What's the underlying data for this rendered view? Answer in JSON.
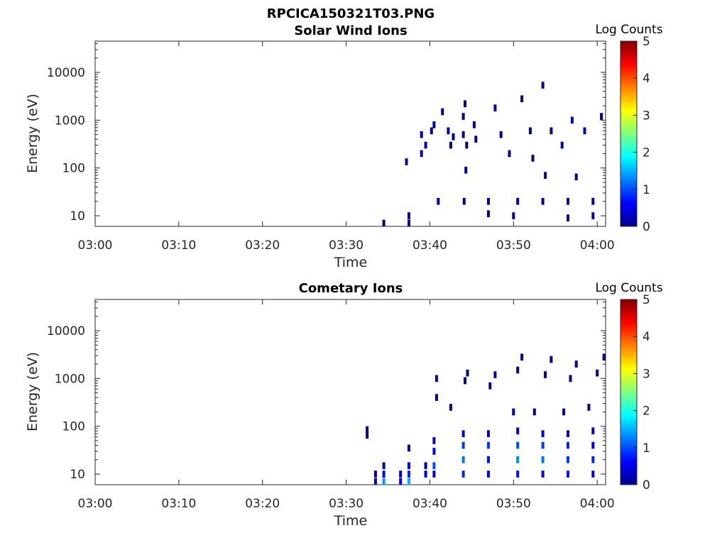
{
  "figure_title": "RPCICA150321T03.PNG",
  "chart_data": [
    {
      "type": "heatmap",
      "title": "Solar Wind Ions",
      "xlabel": "Time",
      "ylabel": "Energy (eV)",
      "x_ticks": [
        "03:00",
        "03:10",
        "03:20",
        "03:30",
        "03:40",
        "03:50",
        "04:00"
      ],
      "y_ticks": [
        "10",
        "100",
        "1000",
        "10000"
      ],
      "y_scale": "log",
      "xlim_minutes": [
        0,
        61
      ],
      "ylim_eV": [
        6,
        45000
      ],
      "colorbar": {
        "label": "Log Counts",
        "ticks": [
          "0",
          "1",
          "2",
          "3",
          "4",
          "5"
        ],
        "range": [
          0,
          5
        ],
        "colormap": "jet"
      },
      "cells": [
        {
          "t": 34.5,
          "e": 7,
          "v": 0.1
        },
        {
          "t": 37.5,
          "e": 7,
          "v": 0.1
        },
        {
          "t": 37.5,
          "e": 10,
          "v": 0.1
        },
        {
          "t": 37.2,
          "e": 135,
          "v": 0.1
        },
        {
          "t": 39.0,
          "e": 500,
          "v": 0.1
        },
        {
          "t": 39.0,
          "e": 200,
          "v": 0.1
        },
        {
          "t": 39.5,
          "e": 300,
          "v": 0.1
        },
        {
          "t": 40.5,
          "e": 800,
          "v": 0.1
        },
        {
          "t": 40.2,
          "e": 600,
          "v": 0.1
        },
        {
          "t": 41.0,
          "e": 20,
          "v": 0.1
        },
        {
          "t": 41.5,
          "e": 1500,
          "v": 0.1
        },
        {
          "t": 42.2,
          "e": 600,
          "v": 0.1
        },
        {
          "t": 42.5,
          "e": 300,
          "v": 0.1
        },
        {
          "t": 42.8,
          "e": 450,
          "v": 0.1
        },
        {
          "t": 44.0,
          "e": 1200,
          "v": 0.1
        },
        {
          "t": 44.0,
          "e": 500,
          "v": 0.1
        },
        {
          "t": 44.1,
          "e": 20,
          "v": 0.1
        },
        {
          "t": 44.2,
          "e": 2200,
          "v": 0.1
        },
        {
          "t": 44.3,
          "e": 90,
          "v": 0.1
        },
        {
          "t": 44.4,
          "e": 300,
          "v": 0.1
        },
        {
          "t": 45.3,
          "e": 800,
          "v": 0.1
        },
        {
          "t": 45.5,
          "e": 400,
          "v": 0.1
        },
        {
          "t": 47.0,
          "e": 20,
          "v": 0.1
        },
        {
          "t": 47.0,
          "e": 11,
          "v": 0.1
        },
        {
          "t": 47.8,
          "e": 1800,
          "v": 0.1
        },
        {
          "t": 48.5,
          "e": 500,
          "v": 0.1
        },
        {
          "t": 49.5,
          "e": 200,
          "v": 0.1
        },
        {
          "t": 50.5,
          "e": 20,
          "v": 0.1
        },
        {
          "t": 50.0,
          "e": 10,
          "v": 0.1
        },
        {
          "t": 51.0,
          "e": 2800,
          "v": 0.1
        },
        {
          "t": 52.0,
          "e": 600,
          "v": 0.1
        },
        {
          "t": 52.3,
          "e": 160,
          "v": 0.1
        },
        {
          "t": 53.5,
          "e": 20,
          "v": 0.1
        },
        {
          "t": 53.5,
          "e": 5400,
          "v": 0.1
        },
        {
          "t": 53.8,
          "e": 70,
          "v": 0.1
        },
        {
          "t": 54.5,
          "e": 600,
          "v": 0.1
        },
        {
          "t": 55.8,
          "e": 300,
          "v": 0.1
        },
        {
          "t": 56.5,
          "e": 20,
          "v": 0.1
        },
        {
          "t": 56.5,
          "e": 9,
          "v": 0.1
        },
        {
          "t": 57.0,
          "e": 1000,
          "v": 0.1
        },
        {
          "t": 57.5,
          "e": 65,
          "v": 0.1
        },
        {
          "t": 58.5,
          "e": 600,
          "v": 0.1
        },
        {
          "t": 59.5,
          "e": 20,
          "v": 0.1
        },
        {
          "t": 59.5,
          "e": 10,
          "v": 0.1
        },
        {
          "t": 60.5,
          "e": 1200,
          "v": 0.1
        }
      ]
    },
    {
      "type": "heatmap",
      "title": "Cometary Ions",
      "xlabel": "Time",
      "ylabel": "Energy (eV)",
      "x_ticks": [
        "03:00",
        "03:10",
        "03:20",
        "03:30",
        "03:40",
        "03:50",
        "04:00"
      ],
      "y_ticks": [
        "10",
        "100",
        "1000",
        "10000"
      ],
      "y_scale": "log",
      "xlim_minutes": [
        0,
        61
      ],
      "ylim_eV": [
        6,
        45000
      ],
      "colorbar": {
        "label": "Log Counts",
        "ticks": [
          "0",
          "1",
          "2",
          "3",
          "4",
          "5"
        ],
        "range": [
          0,
          5
        ],
        "colormap": "jet"
      },
      "cells": [
        {
          "t": 32.5,
          "e": 85,
          "v": 0.1
        },
        {
          "t": 32.5,
          "e": 65,
          "v": 0.1
        },
        {
          "t": 33.5,
          "e": 10,
          "v": 0.2
        },
        {
          "t": 33.5,
          "e": 7,
          "v": 0.3
        },
        {
          "t": 34.5,
          "e": 15,
          "v": 0.2
        },
        {
          "t": 34.5,
          "e": 10,
          "v": 0.6
        },
        {
          "t": 34.5,
          "e": 7,
          "v": 1.4
        },
        {
          "t": 36.5,
          "e": 10,
          "v": 0.3
        },
        {
          "t": 36.5,
          "e": 7,
          "v": 0.5
        },
        {
          "t": 37.5,
          "e": 35,
          "v": 0.1
        },
        {
          "t": 37.5,
          "e": 15,
          "v": 0.4
        },
        {
          "t": 37.5,
          "e": 10,
          "v": 0.8
        },
        {
          "t": 37.5,
          "e": 7,
          "v": 1.5
        },
        {
          "t": 39.5,
          "e": 15,
          "v": 0.2
        },
        {
          "t": 39.5,
          "e": 10,
          "v": 0.3
        },
        {
          "t": 40.5,
          "e": 50,
          "v": 0.3
        },
        {
          "t": 40.5,
          "e": 30,
          "v": 0.6
        },
        {
          "t": 40.5,
          "e": 15,
          "v": 1.0
        },
        {
          "t": 40.5,
          "e": 10,
          "v": 0.5
        },
        {
          "t": 40.8,
          "e": 1000,
          "v": 0.1
        },
        {
          "t": 40.8,
          "e": 400,
          "v": 0.1
        },
        {
          "t": 42.5,
          "e": 250,
          "v": 0.1
        },
        {
          "t": 44.0,
          "e": 70,
          "v": 0.5
        },
        {
          "t": 44.0,
          "e": 40,
          "v": 0.9
        },
        {
          "t": 44.0,
          "e": 20,
          "v": 1.2
        },
        {
          "t": 44.0,
          "e": 10,
          "v": 0.8
        },
        {
          "t": 44.2,
          "e": 900,
          "v": 0.1
        },
        {
          "t": 44.5,
          "e": 1300,
          "v": 0.1
        },
        {
          "t": 47.0,
          "e": 70,
          "v": 0.4
        },
        {
          "t": 47.0,
          "e": 40,
          "v": 0.9
        },
        {
          "t": 47.0,
          "e": 20,
          "v": 0.7
        },
        {
          "t": 47.0,
          "e": 10,
          "v": 0.6
        },
        {
          "t": 47.2,
          "e": 700,
          "v": 0.1
        },
        {
          "t": 47.8,
          "e": 1200,
          "v": 0.1
        },
        {
          "t": 50.5,
          "e": 80,
          "v": 0.4
        },
        {
          "t": 50.5,
          "e": 40,
          "v": 1.0
        },
        {
          "t": 50.5,
          "e": 20,
          "v": 1.3
        },
        {
          "t": 50.5,
          "e": 10,
          "v": 0.7
        },
        {
          "t": 50.5,
          "e": 1500,
          "v": 0.1
        },
        {
          "t": 51.0,
          "e": 2800,
          "v": 0.1
        },
        {
          "t": 50.0,
          "e": 200,
          "v": 0.1
        },
        {
          "t": 53.5,
          "e": 70,
          "v": 0.4
        },
        {
          "t": 53.5,
          "e": 40,
          "v": 0.9
        },
        {
          "t": 53.5,
          "e": 20,
          "v": 1.2
        },
        {
          "t": 53.5,
          "e": 10,
          "v": 0.6
        },
        {
          "t": 53.8,
          "e": 1200,
          "v": 0.1
        },
        {
          "t": 54.5,
          "e": 2500,
          "v": 0.1
        },
        {
          "t": 52.5,
          "e": 200,
          "v": 0.1
        },
        {
          "t": 56.5,
          "e": 70,
          "v": 0.3
        },
        {
          "t": 56.5,
          "e": 40,
          "v": 0.8
        },
        {
          "t": 56.5,
          "e": 20,
          "v": 0.9
        },
        {
          "t": 56.5,
          "e": 10,
          "v": 0.7
        },
        {
          "t": 56.8,
          "e": 1000,
          "v": 0.1
        },
        {
          "t": 57.5,
          "e": 2000,
          "v": 0.1
        },
        {
          "t": 56.0,
          "e": 200,
          "v": 0.1
        },
        {
          "t": 59.5,
          "e": 80,
          "v": 0.3
        },
        {
          "t": 59.5,
          "e": 40,
          "v": 0.6
        },
        {
          "t": 59.5,
          "e": 20,
          "v": 0.8
        },
        {
          "t": 59.5,
          "e": 10,
          "v": 0.5
        },
        {
          "t": 60.0,
          "e": 1300,
          "v": 0.1
        },
        {
          "t": 60.8,
          "e": 2800,
          "v": 0.1
        },
        {
          "t": 59.0,
          "e": 250,
          "v": 0.1
        }
      ]
    }
  ]
}
